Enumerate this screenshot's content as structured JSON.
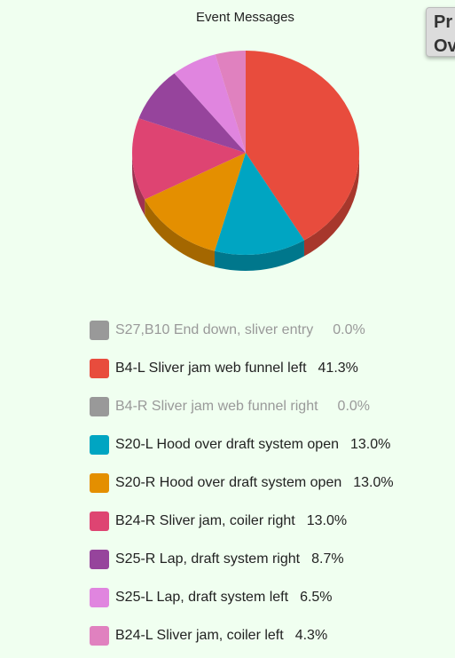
{
  "chart_data": {
    "type": "pie",
    "title": "Event Messages",
    "slices": [
      {
        "label": "S27,B10 End down, sliver entry",
        "percent_label": "0.0%",
        "value": 0.0,
        "color": "#999999",
        "hidden": true
      },
      {
        "label": "B4-L Sliver jam web funnel left",
        "percent_label": "41.3%",
        "value": 41.3,
        "color": "#e84c3d",
        "hidden": false
      },
      {
        "label": "B4-R Sliver jam web funnel right",
        "percent_label": "0.0%",
        "value": 0.0,
        "color": "#999999",
        "hidden": true
      },
      {
        "label": "S20-L Hood over draft system open",
        "percent_label": "13.0%",
        "value": 13.0,
        "color": "#00a5c2",
        "hidden": false
      },
      {
        "label": "S20-R Hood over draft system open",
        "percent_label": "13.0%",
        "value": 13.0,
        "color": "#e48f00",
        "hidden": false
      },
      {
        "label": "B24-R Sliver jam, coiler right",
        "percent_label": "13.0%",
        "value": 13.0,
        "color": "#de4472",
        "hidden": false
      },
      {
        "label": "S25-R Lap, draft system right",
        "percent_label": "8.7%",
        "value": 8.7,
        "color": "#96449c",
        "hidden": false
      },
      {
        "label": "S25-L Lap, draft system left",
        "percent_label": "6.5%",
        "value": 6.5,
        "color": "#e085df",
        "hidden": false
      },
      {
        "label": "B24-L Sliver jam, coiler left",
        "percent_label": "4.3%",
        "value": 4.3,
        "color": "#e081bf",
        "hidden": false
      }
    ],
    "legend_position": "bottom"
  },
  "side_button": {
    "line1": "Pr",
    "line2": "Ov"
  }
}
